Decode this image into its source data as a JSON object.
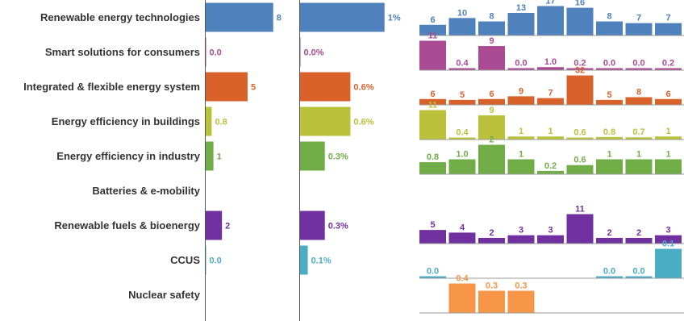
{
  "chart_data": {
    "type": "bar",
    "categories": [
      "Renewable energy technologies",
      "Smart solutions for consumers",
      "Integrated & flexible energy system",
      "Energy efficiency in buildings",
      "Energy efficiency in industry",
      "Batteries & e-mobility",
      "Renewable fuels & bioenergy",
      "CCUS",
      "Nuclear safety"
    ],
    "colors": [
      "#4f81bd",
      "#a94a92",
      "#d9622b",
      "#b9c23a",
      "#70ad47",
      "#4f81bd",
      "#7030a0",
      "#4bacc6",
      "#f79646"
    ],
    "panels": [
      {
        "values": [
          8,
          0.0,
          5,
          0.8,
          1,
          null,
          2,
          0.0,
          null
        ],
        "labels": [
          "8",
          "0.0",
          "5",
          "0.8",
          "1",
          "",
          "2",
          "0.0",
          ""
        ],
        "xlim": [
          0,
          8.5
        ]
      },
      {
        "values": [
          1.0,
          0.0,
          0.6,
          0.6,
          0.3,
          null,
          0.3,
          0.1,
          null
        ],
        "labels": [
          "1%",
          "0.0%",
          "0.6%",
          "0.6%",
          "0.3%",
          "",
          "0.3%",
          "0.1%",
          ""
        ],
        "xlim": [
          0,
          1.05
        ]
      }
    ],
    "small_multiples": [
      {
        "values": [
          6,
          10,
          8,
          13,
          17,
          16,
          8,
          7,
          7
        ],
        "labels": [
          "6",
          "10",
          "8",
          "13",
          "17",
          "16",
          "8",
          "7",
          "7"
        ]
      },
      {
        "values": [
          11,
          0.4,
          9,
          0.0,
          1.0,
          0.2,
          0.0,
          0.0,
          0.2
        ],
        "labels": [
          "11",
          "0.4",
          "9",
          "0.0",
          "1.0",
          "0.2",
          "0.0",
          "0.0",
          "0.2"
        ]
      },
      {
        "values": [
          6,
          5,
          6,
          9,
          7,
          32,
          5,
          8,
          6
        ],
        "labels": [
          "6",
          "5",
          "6",
          "9",
          "7",
          "32",
          "5",
          "8",
          "6"
        ]
      },
      {
        "values": [
          11,
          0.4,
          9,
          1,
          1,
          0.6,
          0.8,
          0.7,
          1
        ],
        "labels": [
          "11",
          "0.4",
          "9",
          "1",
          "1",
          "0.6",
          "0.8",
          "0.7",
          "1"
        ]
      },
      {
        "values": [
          0.8,
          1.0,
          2,
          1,
          0.2,
          0.6,
          1,
          1,
          1
        ],
        "labels": [
          "0.8",
          "1.0",
          "2",
          "1",
          "0.2",
          "0.6",
          "1",
          "1",
          "1"
        ]
      },
      {
        "values": [],
        "labels": []
      },
      {
        "values": [
          5,
          4,
          2,
          3,
          3,
          11,
          2,
          2,
          3
        ],
        "labels": [
          "5",
          "4",
          "2",
          "3",
          "3",
          "11",
          "2",
          "2",
          "3"
        ]
      },
      {
        "values": [
          0.0,
          null,
          null,
          null,
          null,
          null,
          0.0,
          0.0,
          0.1
        ],
        "labels": [
          "0.0",
          "",
          "",
          "",
          "",
          "",
          "0.0",
          "0.0",
          "0.1"
        ]
      },
      {
        "values": [
          null,
          0.4,
          0.3,
          0.3,
          null,
          null,
          null,
          null,
          null
        ],
        "labels": [
          "",
          "0.4",
          "0.3",
          "0.3",
          "",
          "",
          "",
          "",
          ""
        ]
      }
    ],
    "grid": false,
    "legend": "none"
  }
}
